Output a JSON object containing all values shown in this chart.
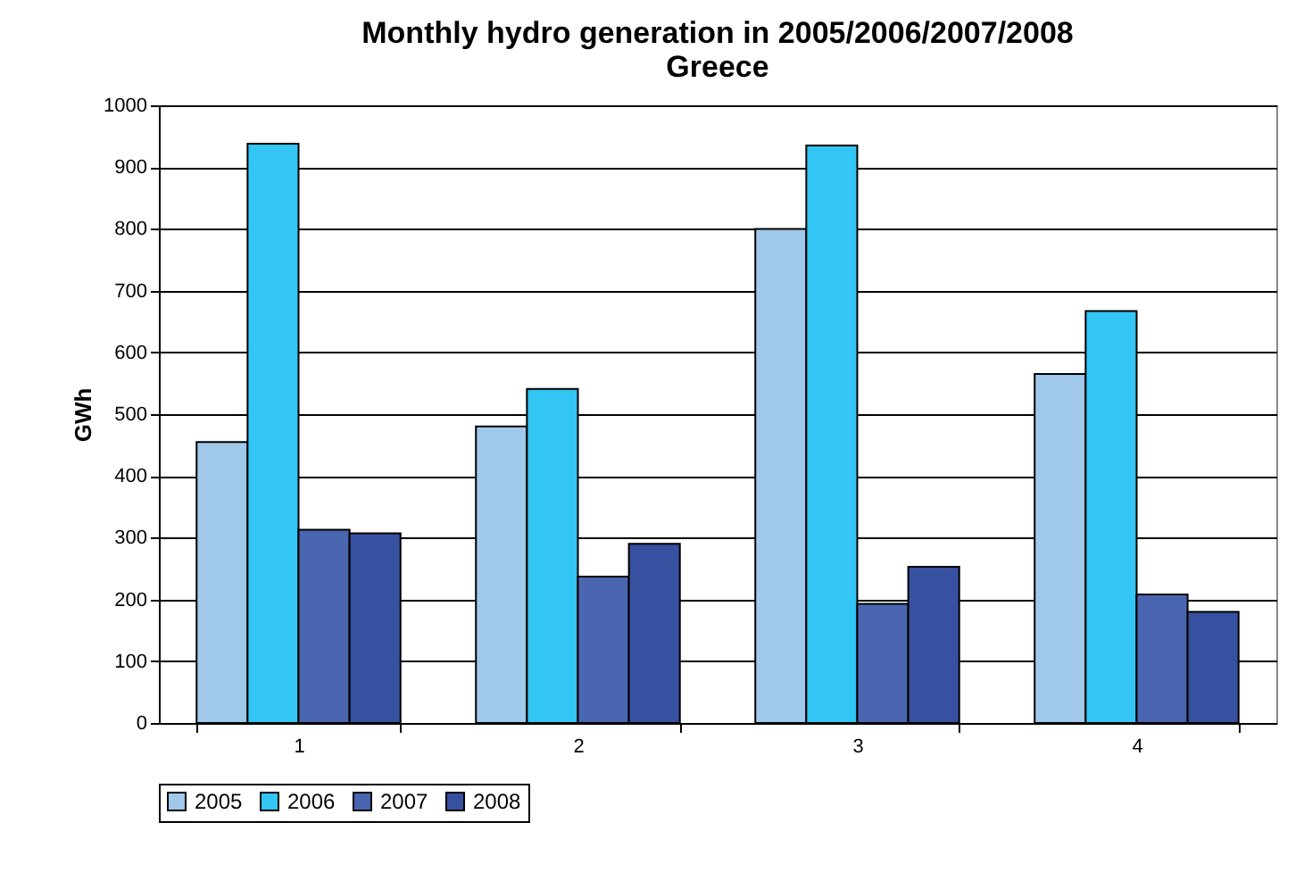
{
  "chart_data": {
    "type": "bar",
    "title": "Monthly hydro generation in 2005/2006/2007/2008",
    "subtitle": "Greece",
    "ylabel": "GWh",
    "categories": [
      "1",
      "2",
      "3",
      "4"
    ],
    "series": [
      {
        "name": "2005",
        "color": "#9fc8ea",
        "values": [
          455,
          480,
          800,
          565
        ]
      },
      {
        "name": "2006",
        "color": "#33c5f3",
        "values": [
          938,
          541,
          935,
          667
        ]
      },
      {
        "name": "2007",
        "color": "#4a66b0",
        "values": [
          313,
          237,
          193,
          208
        ]
      },
      {
        "name": "2008",
        "color": "#3850a0",
        "values": [
          307,
          290,
          253,
          180
        ]
      }
    ],
    "ylim": [
      0,
      1000
    ],
    "yticks": [
      0,
      100,
      200,
      300,
      400,
      500,
      600,
      700,
      800,
      900,
      1000
    ],
    "grid": "y",
    "legend": "bottom"
  }
}
